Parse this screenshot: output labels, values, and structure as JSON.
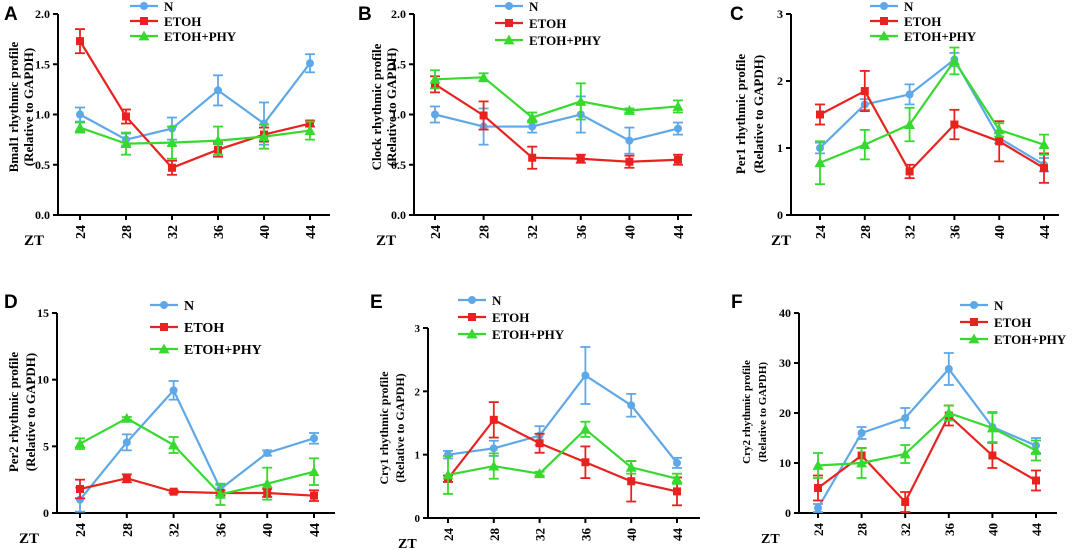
{
  "colors": {
    "N": "#5fa8e8",
    "ETOH": "#e8231f",
    "ETOH+PHY": "#37d930",
    "axis": "#000000"
  },
  "chart_data": [
    {
      "panel": "A",
      "type": "line",
      "ylabel_line1": "Bmal1 rhythmic profile",
      "ylabel_line2": "(Relative to GAPDH)",
      "xlabel": "ZT",
      "x": [
        24,
        28,
        32,
        36,
        40,
        44
      ],
      "ylim": [
        0,
        2.0
      ],
      "yticks": [
        "0.0",
        "0.5",
        "1.0",
        "1.5",
        "2.0"
      ],
      "ytick_values": [
        0,
        0.5,
        1.0,
        1.5,
        2.0
      ],
      "legend": "top",
      "legend_labels": [
        "N",
        "ETOH",
        "ETOH+PHY"
      ],
      "series": [
        {
          "name": "N",
          "values": [
            1.0,
            0.75,
            0.86,
            1.24,
            0.91,
            1.51
          ],
          "errors": [
            0.07,
            0.06,
            0.11,
            0.15,
            0.21,
            0.09
          ]
        },
        {
          "name": "ETOH",
          "values": [
            1.73,
            0.98,
            0.47,
            0.65,
            0.8,
            0.91
          ],
          "errors": [
            0.12,
            0.07,
            0.07,
            0.07,
            0.07,
            0.03
          ]
        },
        {
          "name": "ETOH+PHY",
          "values": [
            0.87,
            0.71,
            0.72,
            0.74,
            0.78,
            0.84
          ],
          "errors": [
            0.05,
            0.11,
            0.16,
            0.14,
            0.12,
            0.09
          ]
        }
      ]
    },
    {
      "panel": "B",
      "type": "line",
      "ylabel_line1": "Clock rhythmic profile",
      "ylabel_line2": "(Relative to GAPDH)",
      "xlabel": "ZT",
      "x": [
        24,
        28,
        32,
        36,
        40,
        44
      ],
      "ylim": [
        0,
        2.0
      ],
      "yticks": [
        "0.0",
        "0.5",
        "1.0",
        "1.5",
        "2.0"
      ],
      "ytick_values": [
        0,
        0.5,
        1.0,
        1.5,
        2.0
      ],
      "legend": "top",
      "legend_labels": [
        "N",
        "ETOH",
        "ETOH+PHY"
      ],
      "series": [
        {
          "name": "N",
          "values": [
            1.0,
            0.88,
            0.88,
            1.0,
            0.74,
            0.86
          ],
          "errors": [
            0.08,
            0.18,
            0.06,
            0.18,
            0.13,
            0.06
          ]
        },
        {
          "name": "ETOH",
          "values": [
            1.3,
            0.99,
            0.57,
            0.56,
            0.53,
            0.55
          ],
          "errors": [
            0.08,
            0.14,
            0.11,
            0.04,
            0.06,
            0.05
          ]
        },
        {
          "name": "ETOH+PHY",
          "values": [
            1.35,
            1.37,
            0.97,
            1.13,
            1.04,
            1.08
          ],
          "errors": [
            0.09,
            0.04,
            0.05,
            0.18,
            0.02,
            0.06
          ]
        }
      ]
    },
    {
      "panel": "C",
      "type": "line",
      "ylabel_line1": "Per1 rhythmic profile",
      "ylabel_line2": "(Relative to GAPDH)",
      "xlabel": "ZT",
      "x": [
        24,
        28,
        32,
        36,
        40,
        44
      ],
      "ylim": [
        0,
        3
      ],
      "yticks": [
        "0",
        "1",
        "2",
        "3"
      ],
      "ytick_values": [
        0,
        1,
        2,
        3
      ],
      "legend": "top",
      "legend_labels": [
        "N",
        "ETOH",
        "ETOH+PHY"
      ],
      "series": [
        {
          "name": "N",
          "values": [
            1.0,
            1.65,
            1.8,
            2.32,
            1.15,
            0.75
          ],
          "errors": [
            0.08,
            0.08,
            0.15,
            0.1,
            0.08,
            0.1
          ]
        },
        {
          "name": "ETOH",
          "values": [
            1.5,
            1.85,
            0.65,
            1.35,
            1.1,
            0.7
          ],
          "errors": [
            0.15,
            0.3,
            0.1,
            0.22,
            0.3,
            0.22
          ]
        },
        {
          "name": "ETOH+PHY",
          "values": [
            0.78,
            1.05,
            1.35,
            2.3,
            1.27,
            1.05
          ],
          "errors": [
            0.32,
            0.22,
            0.25,
            0.2,
            0.1,
            0.15
          ]
        }
      ]
    },
    {
      "panel": "D",
      "type": "line",
      "ylabel_line1": "Per2 rhythmic profile",
      "ylabel_line2": "(Relative to GAPDH)",
      "xlabel": "ZT",
      "x": [
        24,
        28,
        32,
        36,
        40,
        44
      ],
      "ylim": [
        0,
        15
      ],
      "yticks": [
        "0",
        "5",
        "10",
        "15"
      ],
      "ytick_values": [
        0,
        5,
        10,
        15
      ],
      "legend": "top",
      "legend_labels": [
        "N",
        "ETOH",
        "ETOH+PHY"
      ],
      "series": [
        {
          "name": "N",
          "values": [
            1.0,
            5.3,
            9.2,
            1.8,
            4.5,
            5.6
          ],
          "errors": [
            0.9,
            0.6,
            0.7,
            0.3,
            0.2,
            0.4
          ]
        },
        {
          "name": "ETOH",
          "values": [
            1.8,
            2.6,
            1.6,
            1.5,
            1.5,
            1.3
          ],
          "errors": [
            0.7,
            0.3,
            0.1,
            0.2,
            0.3,
            0.4
          ]
        },
        {
          "name": "ETOH+PHY",
          "values": [
            5.2,
            7.1,
            5.1,
            1.4,
            2.2,
            3.1
          ],
          "errors": [
            0.4,
            0.1,
            0.6,
            0.8,
            1.2,
            1.0
          ]
        }
      ]
    },
    {
      "panel": "E",
      "type": "line",
      "ylabel_line1": "Cry1 rhythmic profile",
      "ylabel_line2": "(Relative to GAPDH)",
      "xlabel": "ZT",
      "x": [
        24,
        28,
        32,
        36,
        40,
        44
      ],
      "ylim": [
        0,
        3
      ],
      "yticks": [
        "0",
        "1",
        "2",
        "3"
      ],
      "ytick_values": [
        0,
        1,
        2,
        3
      ],
      "legend": "top",
      "legend_labels": [
        "N",
        "ETOH",
        "ETOH+PHY"
      ],
      "series": [
        {
          "name": "N",
          "values": [
            1.0,
            1.1,
            1.3,
            2.25,
            1.78,
            0.87
          ],
          "errors": [
            0.06,
            0.12,
            0.15,
            0.45,
            0.18,
            0.08
          ]
        },
        {
          "name": "ETOH",
          "values": [
            0.62,
            1.55,
            1.18,
            0.88,
            0.58,
            0.42
          ],
          "errors": [
            0.05,
            0.28,
            0.15,
            0.25,
            0.32,
            0.22
          ]
        },
        {
          "name": "ETOH+PHY",
          "values": [
            0.68,
            0.82,
            0.7,
            1.4,
            0.8,
            0.62
          ],
          "errors": [
            0.3,
            0.2,
            0.03,
            0.12,
            0.1,
            0.08
          ]
        }
      ]
    },
    {
      "panel": "F",
      "type": "line",
      "ylabel_line1": "Cry2 rhythmic profile",
      "ylabel_line2": "(Relative to GAPDH)",
      "xlabel": "ZT",
      "x": [
        24,
        28,
        32,
        36,
        40,
        44
      ],
      "ylim": [
        0,
        40
      ],
      "yticks": [
        "0",
        "10",
        "20",
        "30",
        "40"
      ],
      "ytick_values": [
        0,
        10,
        20,
        30,
        40
      ],
      "legend": "top",
      "legend_labels": [
        "N",
        "ETOH",
        "ETOH+PHY"
      ],
      "series": [
        {
          "name": "N",
          "values": [
            1.0,
            16.0,
            19.0,
            28.8,
            17.2,
            13.5
          ],
          "errors": [
            0.8,
            1.2,
            2.0,
            3.2,
            3.0,
            1.5
          ]
        },
        {
          "name": "ETOH",
          "values": [
            5.0,
            11.5,
            2.2,
            19.5,
            11.5,
            6.5
          ],
          "errors": [
            2.5,
            1.5,
            2.0,
            2.0,
            2.5,
            2.0
          ]
        },
        {
          "name": "ETOH+PHY",
          "values": [
            9.5,
            10.0,
            11.8,
            20.0,
            17.0,
            12.5
          ],
          "errors": [
            2.5,
            3.0,
            1.8,
            1.5,
            3.0,
            2.0
          ]
        }
      ]
    }
  ]
}
